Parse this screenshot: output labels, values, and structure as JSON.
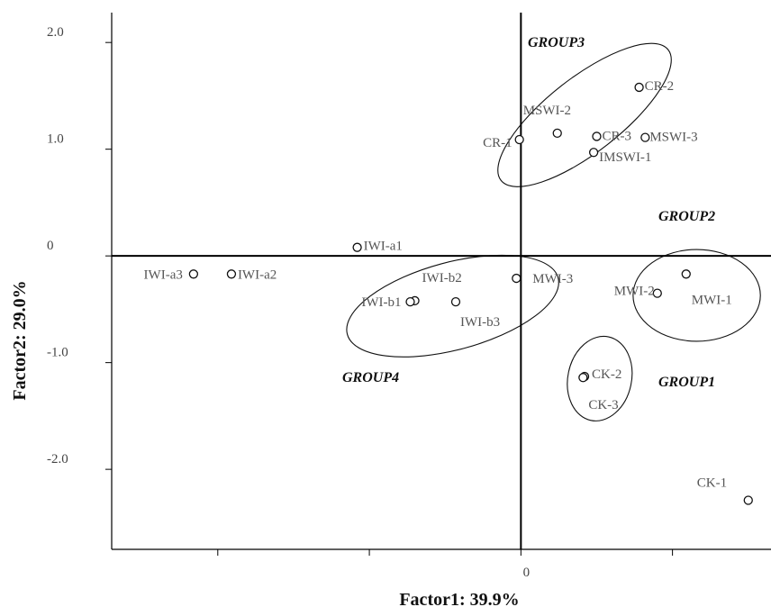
{
  "chart_data": {
    "type": "scatter",
    "xlabel": "Factor1: 39.9%",
    "ylabel": "Factor2: 29.0%",
    "xlim": [
      -2.7,
      1.65
    ],
    "ylim": [
      -2.75,
      2.28
    ],
    "x_ticks": [
      -2.0,
      -1.0,
      0.0,
      1.0
    ],
    "x_tick_labels": [
      "",
      "",
      "0",
      ""
    ],
    "y_ticks": [
      2.0,
      1.0,
      0.0,
      -1.0,
      -2.0
    ],
    "y_tick_labels": [
      "2.0",
      "1.0",
      "0",
      "-1.0",
      "-2.0"
    ],
    "grid": false,
    "points": [
      {
        "label": "CR-2",
        "x": 0.78,
        "y": 1.58
      },
      {
        "label": "MSWI-2",
        "x": 0.24,
        "y": 1.15
      },
      {
        "label": "CR-1",
        "x": -0.01,
        "y": 1.09
      },
      {
        "label": "CR-3",
        "x": 0.5,
        "y": 1.12
      },
      {
        "label": "MSWI-3",
        "x": 0.82,
        "y": 1.11
      },
      {
        "label": "IMSWI-1",
        "x": 0.48,
        "y": 0.97
      },
      {
        "label": "IWI-a1",
        "x": -1.08,
        "y": 0.08
      },
      {
        "label": "IWI-a3",
        "x": -2.16,
        "y": -0.17
      },
      {
        "label": "IWI-a2",
        "x": -1.91,
        "y": -0.17
      },
      {
        "label": "IWI-b2",
        "x": -0.7,
        "y": -0.42
      },
      {
        "label": "IWI-b1",
        "x": -0.73,
        "y": -0.43
      },
      {
        "label": "IWI-b3",
        "x": -0.43,
        "y": -0.43
      },
      {
        "label": "MWI-3",
        "x": -0.03,
        "y": -0.21
      },
      {
        "label": "MWI-2",
        "x": 0.9,
        "y": -0.35
      },
      {
        "label": "MWI-1",
        "x": 1.09,
        "y": -0.17
      },
      {
        "label": "CK-2",
        "x": 0.42,
        "y": -1.13
      },
      {
        "label": "CK-3",
        "x": 0.41,
        "y": -1.14
      },
      {
        "label": "CK-1",
        "x": 1.5,
        "y": -2.29
      }
    ],
    "groups": [
      {
        "name": "GROUP1",
        "members": [
          "CK-2",
          "CK-3"
        ]
      },
      {
        "name": "GROUP2",
        "members": [
          "MWI-2",
          "MWI-1"
        ]
      },
      {
        "name": "GROUP3",
        "members": [
          "CR-1",
          "CR-2",
          "CR-3",
          "MSWI-2",
          "MSWI-3",
          "IMSWI-1"
        ]
      },
      {
        "name": "GROUP4",
        "members": [
          "IWI-b1",
          "IWI-b2",
          "IWI-b3",
          "MWI-3"
        ]
      }
    ],
    "ellipses": [
      {
        "group": "GROUP3",
        "cx": 0.42,
        "cy": 1.32,
        "rx": 0.7,
        "ry": 0.35,
        "angle_deg": 38
      },
      {
        "group": "GROUP4",
        "cx": -0.45,
        "cy": -0.47,
        "rx": 0.72,
        "ry": 0.41,
        "angle_deg": 15
      },
      {
        "group": "GROUP2",
        "cx": 1.16,
        "cy": -0.37,
        "rx": 0.42,
        "ry": 0.43,
        "angle_deg": 0
      },
      {
        "group": "GROUP1",
        "cx": 0.52,
        "cy": -1.15,
        "rx": 0.21,
        "ry": 0.4,
        "angle_deg": -12
      }
    ]
  }
}
